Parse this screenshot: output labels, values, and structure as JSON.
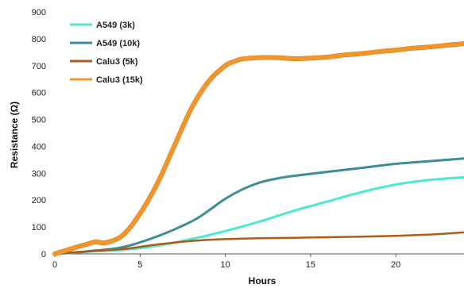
{
  "chart_data": {
    "type": "line",
    "title": "",
    "xlabel": "Hours",
    "ylabel": "Resistance (Ω)",
    "xlim": [
      0,
      24
    ],
    "ylim": [
      0,
      900
    ],
    "xticks": [
      0,
      5,
      10,
      15,
      20
    ],
    "yticks": [
      0,
      100,
      200,
      300,
      400,
      500,
      600,
      700,
      800,
      900
    ],
    "grid": false,
    "legend_position": "top-left",
    "series": [
      {
        "name": "A549 (3k)",
        "color": "#4de8d2",
        "x": [
          0,
          2,
          4,
          6,
          8,
          10,
          12,
          14,
          16,
          18,
          20,
          22,
          24
        ],
        "y": [
          0,
          8,
          15,
          30,
          55,
          85,
          120,
          160,
          195,
          230,
          258,
          275,
          285
        ]
      },
      {
        "name": "A549 (10k)",
        "color": "#3e8c96",
        "x": [
          0,
          2,
          4,
          6,
          8,
          9,
          10,
          11,
          12,
          13,
          14,
          16,
          18,
          20,
          22,
          24
        ],
        "y": [
          0,
          10,
          25,
          65,
          120,
          160,
          205,
          240,
          265,
          280,
          290,
          305,
          320,
          335,
          345,
          355
        ]
      },
      {
        "name": "Calu3 (5k)",
        "color": "#b05a1a",
        "x": [
          0,
          2,
          4,
          6,
          8,
          10,
          12,
          14,
          16,
          18,
          20,
          22,
          24
        ],
        "y": [
          0,
          10,
          18,
          35,
          48,
          55,
          58,
          60,
          62,
          64,
          67,
          72,
          80
        ]
      },
      {
        "name": "Calu3 (15k)",
        "color": "#f0962c",
        "x": [
          0,
          1,
          2,
          2.4,
          3,
          4,
          5,
          6,
          7,
          8,
          9,
          10,
          10.5,
          11,
          12,
          13,
          14,
          15,
          16,
          17,
          18,
          19,
          20,
          21,
          22,
          23,
          24
        ],
        "y": [
          0,
          20,
          38,
          45,
          42,
          70,
          150,
          260,
          400,
          540,
          640,
          700,
          715,
          725,
          730,
          730,
          726,
          728,
          732,
          740,
          745,
          752,
          758,
          765,
          770,
          776,
          782
        ]
      }
    ]
  }
}
